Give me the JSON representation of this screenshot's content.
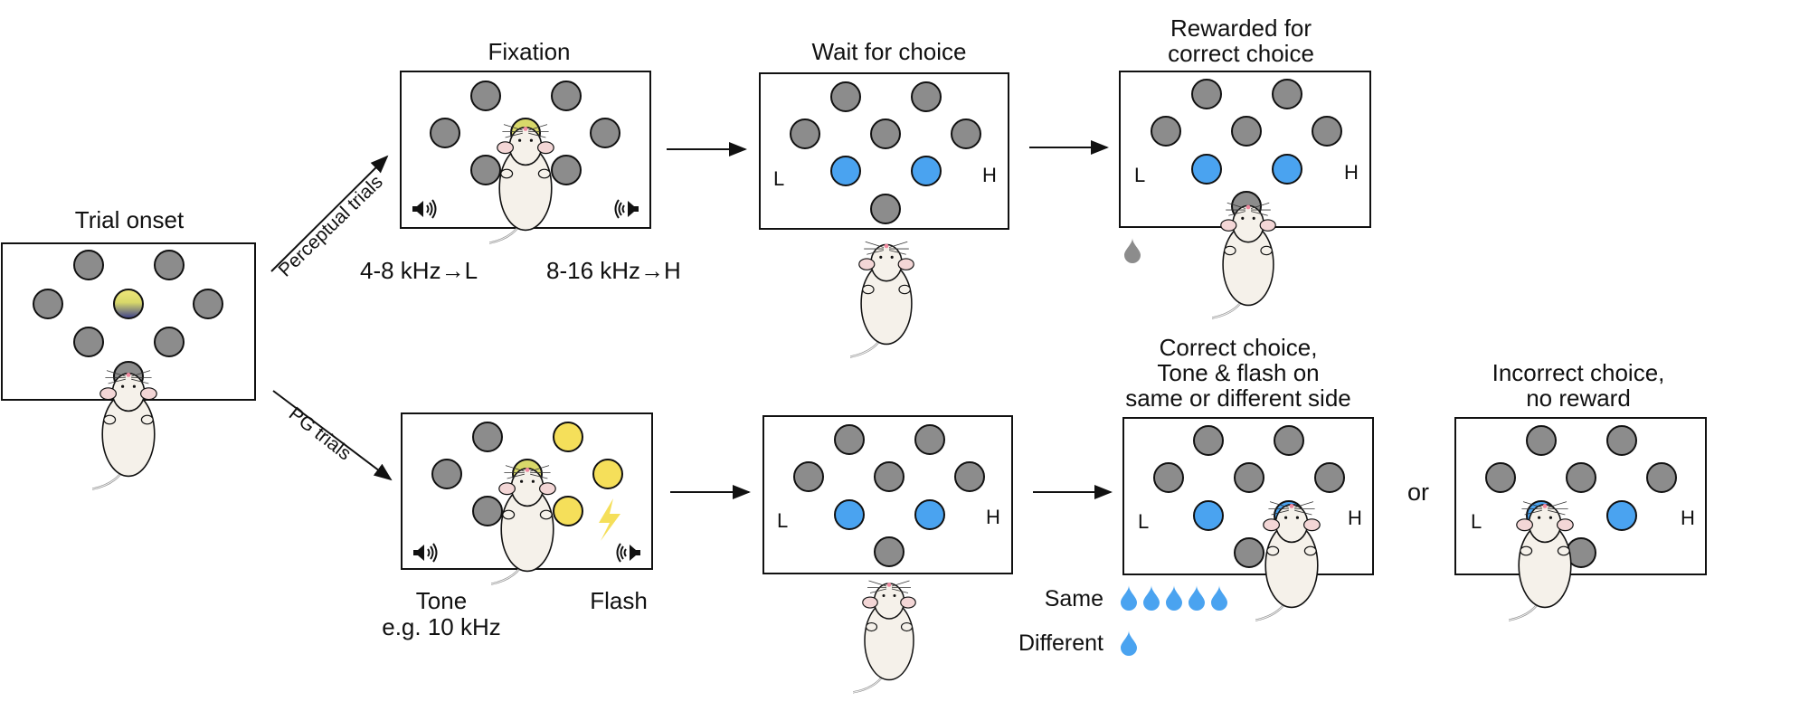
{
  "labels": {
    "trial_onset": "Trial onset",
    "perceptual_trials": "Perceptual trials",
    "pg_trials": "PG trials",
    "fixation": "Fixation",
    "wait_for_choice": "Wait for choice",
    "rewarded_line1": "Rewarded for",
    "rewarded_line2": "correct choice",
    "freq_low": "4-8 kHz→L",
    "freq_high": "8-16 kHz→H",
    "tone": "Tone",
    "tone_example": "e.g. 10 kHz",
    "flash": "Flash",
    "correct_line1": "Correct choice,",
    "correct_line2": "Tone & flash on",
    "correct_line3": "same or different side",
    "incorrect_line1": "Incorrect choice,",
    "incorrect_line2": "no reward",
    "or": "or",
    "same": "Same",
    "different": "Different",
    "side_low": "L",
    "side_high": "H"
  },
  "colors": {
    "port_idle": "#8c8c8c",
    "port_choice": "#4aa3f0",
    "flash_light": "#f5df5a",
    "reward_drop": "#4aa3f0",
    "reward_drop_idle": "#8c8c8c",
    "center_port_gradient_top": "#f0e77a",
    "center_port_gradient_bottom": "#3b3f8c"
  },
  "rewards": {
    "same_drops": 5,
    "different_drops": 1
  }
}
